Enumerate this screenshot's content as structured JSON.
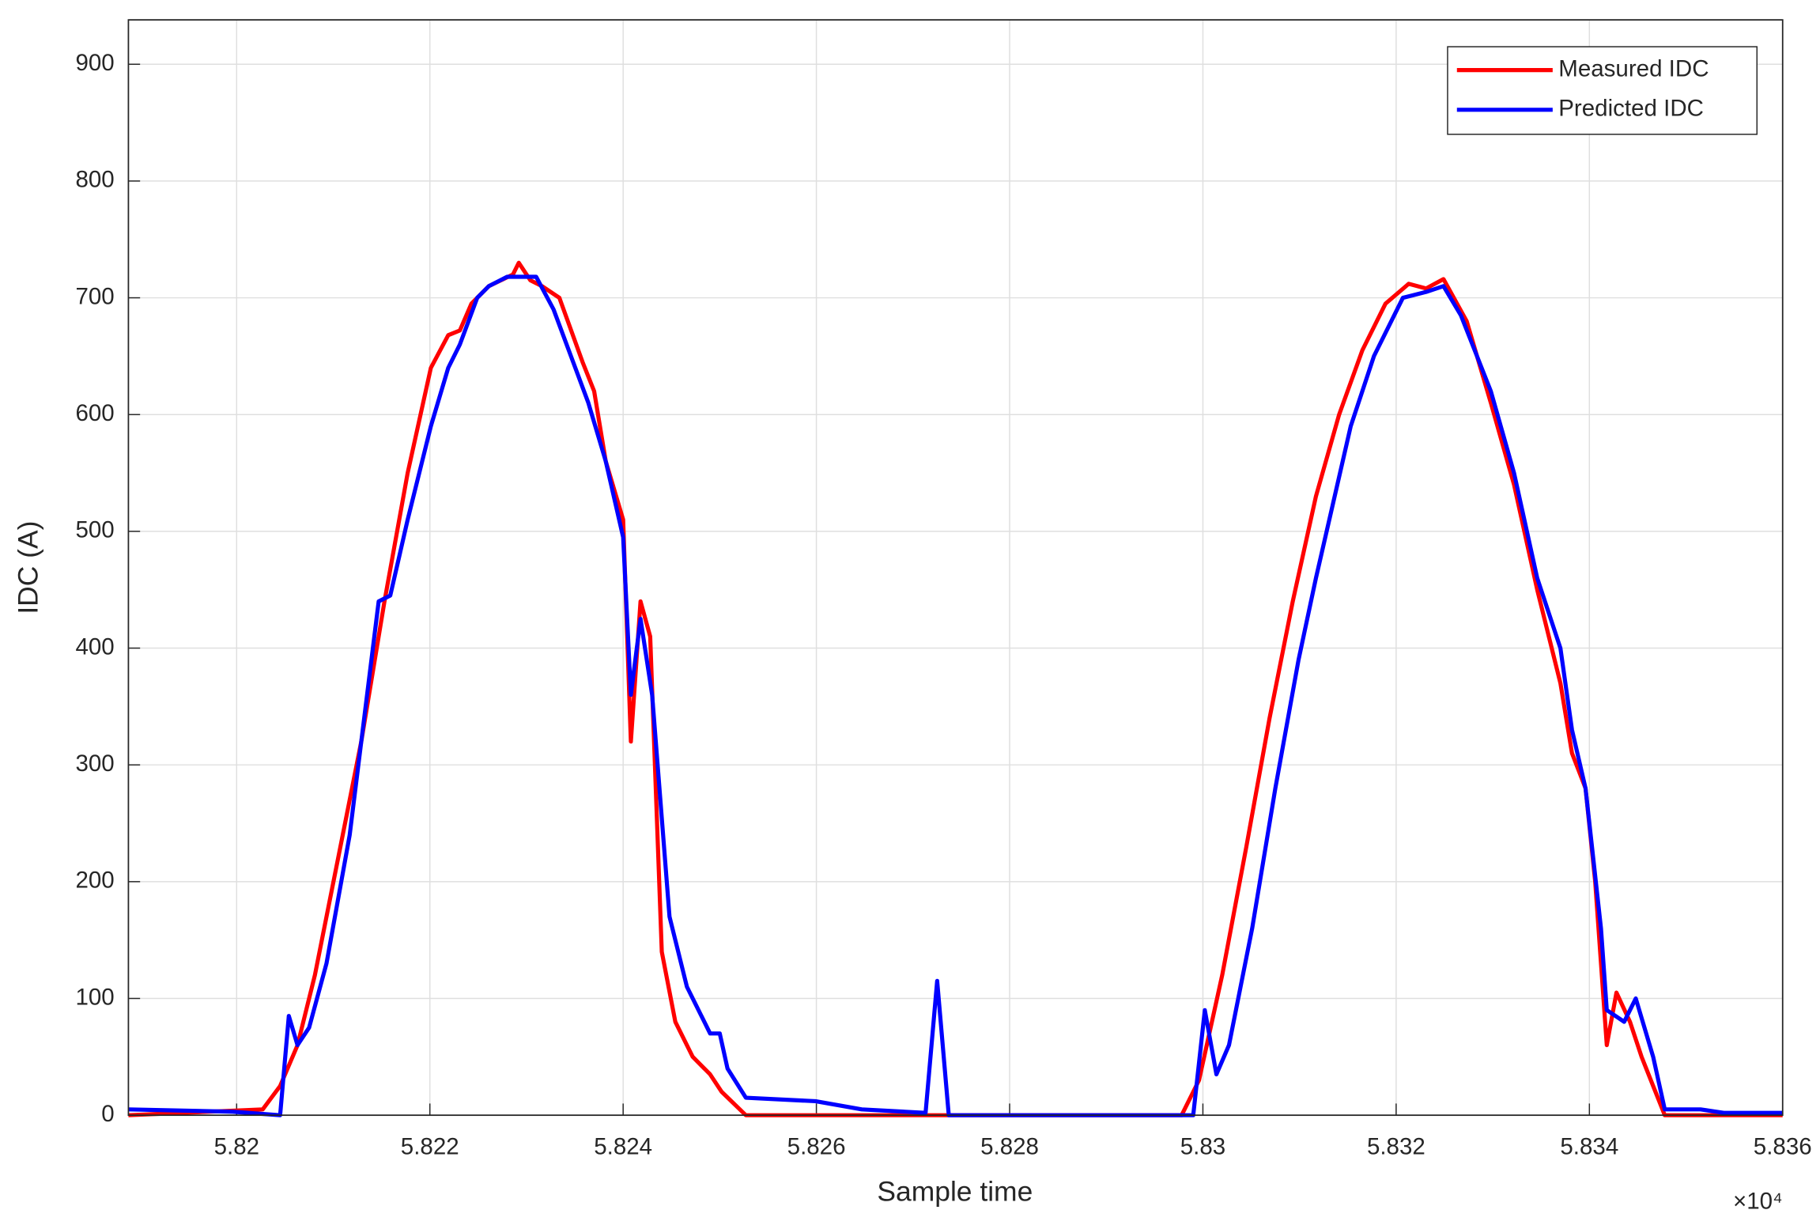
{
  "chart_data": {
    "type": "line",
    "xlabel": "Sample time",
    "ylabel": "IDC (A)",
    "x_multiplier_label": "×10⁴",
    "xlim": [
      5.81888,
      5.836
    ],
    "ylim": [
      0,
      938
    ],
    "xticks": [
      5.82,
      5.822,
      5.824,
      5.826,
      5.828,
      5.83,
      5.832,
      5.834,
      5.836
    ],
    "yticks": [
      0,
      100,
      200,
      300,
      400,
      500,
      600,
      700,
      800,
      900
    ],
    "grid": true,
    "legend": "upper right",
    "series": [
      {
        "name": "Measured IDC",
        "color": "#ff0000",
        "x": [
          5.81888,
          5.82027,
          5.82045,
          5.82063,
          5.82081,
          5.82105,
          5.82129,
          5.82153,
          5.82177,
          5.82201,
          5.82219,
          5.82231,
          5.82243,
          5.82261,
          5.82286,
          5.82292,
          5.82304,
          5.82316,
          5.82334,
          5.82358,
          5.8237,
          5.82382,
          5.824,
          5.82408,
          5.82418,
          5.82428,
          5.8244,
          5.82454,
          5.82472,
          5.8249,
          5.82502,
          5.82527,
          5.82978,
          5.82996,
          5.8302,
          5.83045,
          5.83069,
          5.83093,
          5.83117,
          5.83141,
          5.83165,
          5.83189,
          5.83213,
          5.83231,
          5.83249,
          5.83273,
          5.83298,
          5.83322,
          5.83346,
          5.8337,
          5.83382,
          5.83396,
          5.83406,
          5.83418,
          5.83428,
          5.83442,
          5.83454,
          5.83466,
          5.83478,
          5.836
        ],
        "values": [
          0,
          5,
          25,
          60,
          120,
          220,
          320,
          440,
          550,
          640,
          668,
          672,
          695,
          710,
          720,
          730,
          715,
          710,
          700,
          645,
          620,
          560,
          510,
          320,
          440,
          410,
          140,
          80,
          50,
          35,
          20,
          0,
          0,
          30,
          120,
          230,
          340,
          440,
          530,
          600,
          655,
          695,
          712,
          708,
          716,
          680,
          610,
          540,
          450,
          370,
          310,
          280,
          200,
          60,
          105,
          80,
          50,
          25,
          0,
          0
        ]
      },
      {
        "name": "Predicted IDC",
        "color": "#0000ff",
        "x": [
          5.81888,
          5.81996,
          5.82045,
          5.82054,
          5.82063,
          5.82075,
          5.82093,
          5.82117,
          5.82147,
          5.82159,
          5.82177,
          5.82201,
          5.82219,
          5.82231,
          5.82249,
          5.82261,
          5.8228,
          5.8231,
          5.82328,
          5.82346,
          5.82364,
          5.82382,
          5.824,
          5.82408,
          5.82418,
          5.8243,
          5.82448,
          5.82466,
          5.8249,
          5.825,
          5.82508,
          5.82527,
          5.82599,
          5.82647,
          5.82713,
          5.82725,
          5.82737,
          5.8299,
          5.83002,
          5.83014,
          5.83027,
          5.83051,
          5.83075,
          5.83099,
          5.83117,
          5.83153,
          5.83177,
          5.83207,
          5.83231,
          5.83249,
          5.83267,
          5.83298,
          5.83322,
          5.83346,
          5.8337,
          5.83382,
          5.83396,
          5.83412,
          5.83418,
          5.83436,
          5.83448,
          5.83466,
          5.83478,
          5.8349,
          5.83515,
          5.83539,
          5.836
        ],
        "values": [
          5,
          3,
          0,
          85,
          60,
          75,
          130,
          240,
          440,
          445,
          510,
          590,
          640,
          660,
          700,
          710,
          718,
          718,
          690,
          650,
          610,
          560,
          495,
          360,
          425,
          360,
          170,
          110,
          70,
          70,
          40,
          15,
          12,
          5,
          2,
          115,
          0,
          0,
          90,
          35,
          60,
          160,
          280,
          390,
          460,
          590,
          650,
          700,
          705,
          710,
          685,
          620,
          550,
          460,
          400,
          330,
          280,
          160,
          90,
          80,
          100,
          50,
          5,
          5,
          5,
          2,
          2
        ]
      }
    ]
  }
}
